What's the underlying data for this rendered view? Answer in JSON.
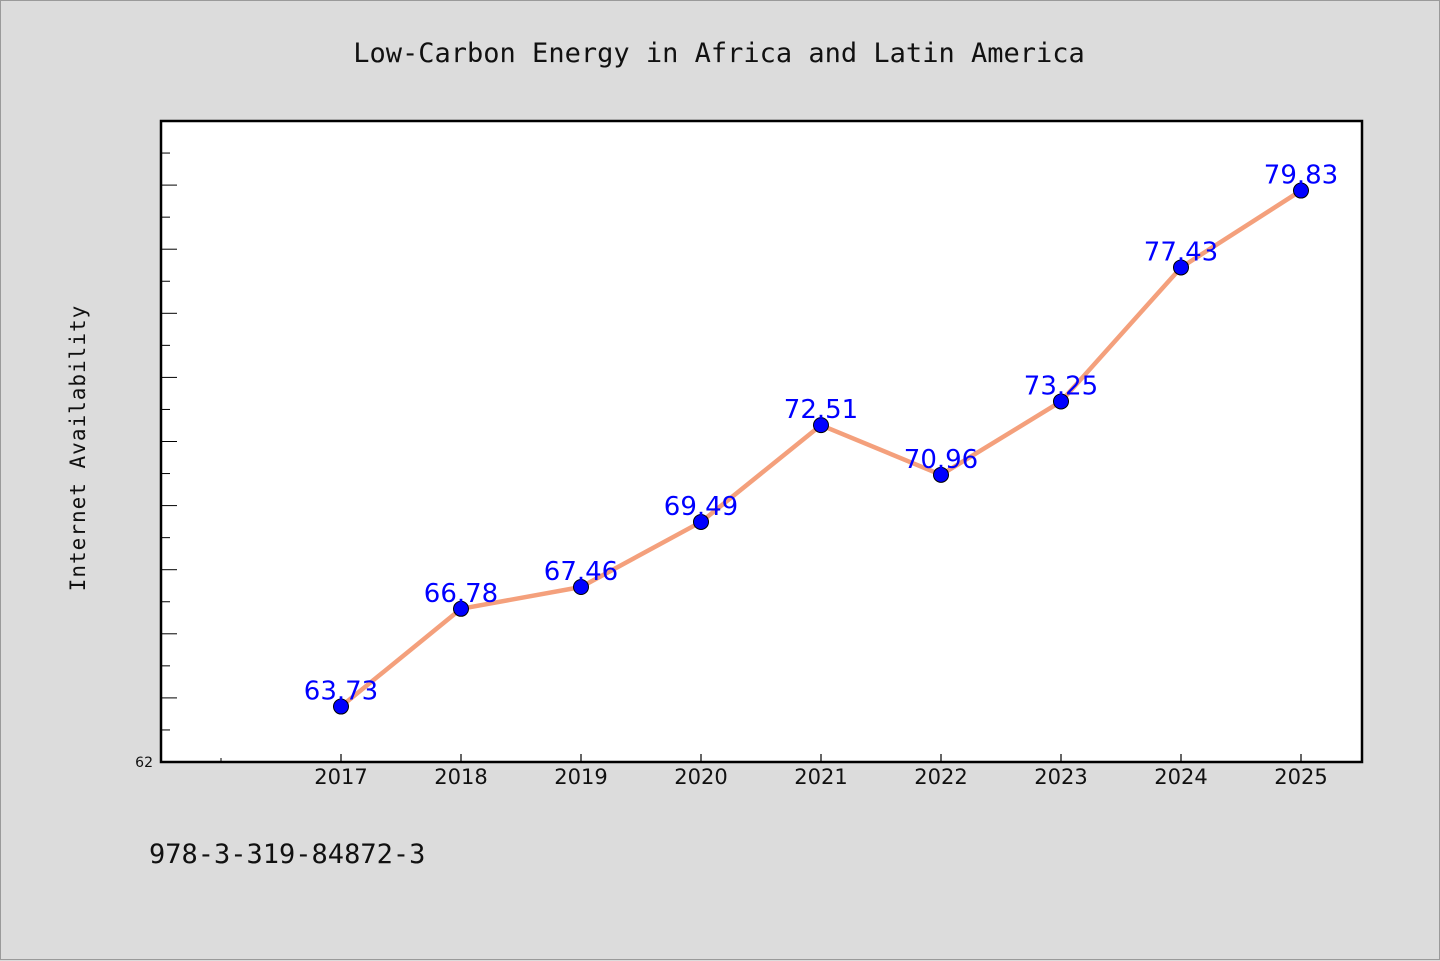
{
  "chart_data": {
    "type": "line",
    "title": "Low-Carbon Energy in Africa and Latin America",
    "xlabel": "",
    "ylabel": "Internet Availability",
    "categories": [
      "2017",
      "2018",
      "2019",
      "2020",
      "2021",
      "2022",
      "2023",
      "2024",
      "2025"
    ],
    "series": [
      {
        "values": [
          63.73,
          66.78,
          67.46,
          69.49,
          72.51,
          70.96,
          73.25,
          77.43,
          79.83
        ],
        "value_labels": [
          "63.73",
          "66.78",
          "67.46",
          "69.49",
          "72.51",
          "70.96",
          "73.25",
          "77.43",
          "79.83"
        ],
        "line_color": "#f4a07c",
        "marker_color": "#0000ff"
      }
    ],
    "ylim": [
      62,
      82
    ],
    "yticks_labeled": [
      "62"
    ],
    "grid": false,
    "legend": "none"
  },
  "footer": {
    "isbn": "978-3-319-84872-3"
  },
  "colors": {
    "background": "#dcdcdc",
    "plot_background": "#ffffff",
    "label_color": "#0000ff"
  }
}
